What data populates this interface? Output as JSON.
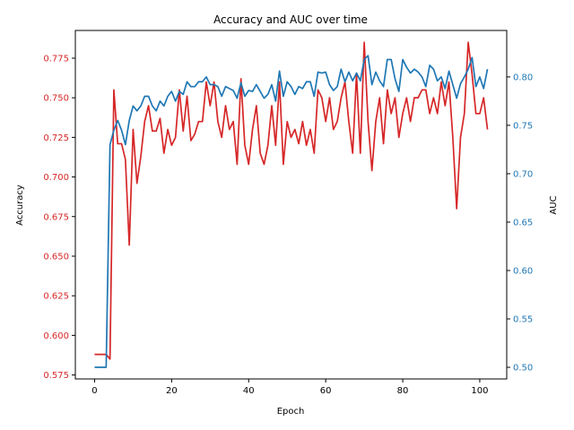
{
  "chart_data": {
    "type": "line",
    "title": "Accuracy and AUC over time",
    "xlabel": "Epoch",
    "xlim": [
      -5,
      107
    ],
    "xticks": [
      0,
      20,
      40,
      60,
      80,
      100
    ],
    "grid": false,
    "left_axis": {
      "label": "Accuracy",
      "color": "#d62728",
      "ylim": [
        0.5725,
        0.7925
      ],
      "ticks": [
        0.575,
        0.6,
        0.625,
        0.65,
        0.675,
        0.7,
        0.725,
        0.75,
        0.775
      ],
      "tick_labels": [
        "0.575",
        "0.600",
        "0.625",
        "0.650",
        "0.675",
        "0.700",
        "0.725",
        "0.750",
        "0.775"
      ]
    },
    "right_axis": {
      "label": "AUC",
      "color": "#1f77b4",
      "ylim": [
        0.488,
        0.848
      ],
      "ticks": [
        0.5,
        0.55,
        0.6,
        0.65,
        0.7,
        0.75,
        0.8
      ],
      "tick_labels": [
        "0.50",
        "0.55",
        "0.60",
        "0.65",
        "0.70",
        "0.75",
        "0.80"
      ]
    },
    "series": [
      {
        "axis": "left",
        "color": "#d62728",
        "x": [
          0,
          1,
          2,
          3,
          4,
          5,
          6,
          7,
          8,
          9,
          10,
          11,
          12,
          13,
          14,
          15,
          16,
          17,
          18,
          19,
          20,
          21,
          22,
          23,
          24,
          25,
          26,
          27,
          28,
          29,
          30,
          31,
          32,
          33,
          34,
          35,
          36,
          37,
          38,
          39,
          40,
          41,
          42,
          43,
          44,
          45,
          46,
          47,
          48,
          49,
          50,
          51,
          52,
          53,
          54,
          55,
          56,
          57,
          58,
          59,
          60,
          61,
          62,
          63,
          64,
          65,
          66,
          67,
          68,
          69,
          70,
          71,
          72,
          73,
          74,
          75,
          76,
          77,
          78,
          79,
          80,
          81,
          82,
          83,
          84,
          85,
          86,
          87,
          88,
          89,
          90,
          91,
          92,
          93,
          94,
          95,
          96,
          97,
          98,
          99,
          100,
          101,
          102
        ],
        "values": [
          0.588,
          0.588,
          0.588,
          0.588,
          0.585,
          0.755,
          0.721,
          0.721,
          0.711,
          0.657,
          0.73,
          0.696,
          0.713,
          0.735,
          0.745,
          0.729,
          0.729,
          0.737,
          0.715,
          0.73,
          0.72,
          0.725,
          0.755,
          0.729,
          0.751,
          0.723,
          0.727,
          0.735,
          0.735,
          0.76,
          0.745,
          0.76,
          0.735,
          0.725,
          0.745,
          0.73,
          0.735,
          0.708,
          0.762,
          0.72,
          0.708,
          0.73,
          0.745,
          0.715,
          0.708,
          0.72,
          0.745,
          0.72,
          0.76,
          0.708,
          0.735,
          0.725,
          0.73,
          0.721,
          0.735,
          0.72,
          0.73,
          0.715,
          0.755,
          0.75,
          0.735,
          0.75,
          0.73,
          0.735,
          0.75,
          0.76,
          0.735,
          0.715,
          0.765,
          0.715,
          0.785,
          0.735,
          0.704,
          0.735,
          0.75,
          0.721,
          0.755,
          0.74,
          0.75,
          0.725,
          0.74,
          0.75,
          0.735,
          0.75,
          0.75,
          0.755,
          0.755,
          0.74,
          0.75,
          0.74,
          0.76,
          0.745,
          0.76,
          0.725,
          0.68,
          0.725,
          0.74,
          0.785,
          0.765,
          0.74,
          0.74,
          0.75,
          0.73
        ]
      },
      {
        "axis": "right",
        "color": "#1f77b4",
        "x": [
          0,
          1,
          2,
          3,
          4,
          5,
          6,
          7,
          8,
          9,
          10,
          11,
          12,
          13,
          14,
          15,
          16,
          17,
          18,
          19,
          20,
          21,
          22,
          23,
          24,
          25,
          26,
          27,
          28,
          29,
          30,
          31,
          32,
          33,
          34,
          35,
          36,
          37,
          38,
          39,
          40,
          41,
          42,
          43,
          44,
          45,
          46,
          47,
          48,
          49,
          50,
          51,
          52,
          53,
          54,
          55,
          56,
          57,
          58,
          59,
          60,
          61,
          62,
          63,
          64,
          65,
          66,
          67,
          68,
          69,
          70,
          71,
          72,
          73,
          74,
          75,
          76,
          77,
          78,
          79,
          80,
          81,
          82,
          83,
          84,
          85,
          86,
          87,
          88,
          89,
          90,
          91,
          92,
          93,
          94,
          95,
          96,
          97,
          98,
          99,
          100,
          101,
          102
        ],
        "values": [
          0.5,
          0.5,
          0.5,
          0.5,
          0.73,
          0.745,
          0.755,
          0.745,
          0.73,
          0.755,
          0.77,
          0.765,
          0.77,
          0.78,
          0.78,
          0.77,
          0.765,
          0.775,
          0.77,
          0.78,
          0.785,
          0.775,
          0.785,
          0.782,
          0.795,
          0.79,
          0.79,
          0.795,
          0.795,
          0.8,
          0.792,
          0.792,
          0.79,
          0.78,
          0.79,
          0.788,
          0.786,
          0.778,
          0.794,
          0.78,
          0.786,
          0.785,
          0.792,
          0.785,
          0.778,
          0.782,
          0.792,
          0.775,
          0.806,
          0.78,
          0.795,
          0.79,
          0.782,
          0.79,
          0.788,
          0.795,
          0.795,
          0.78,
          0.805,
          0.804,
          0.805,
          0.792,
          0.786,
          0.79,
          0.808,
          0.795,
          0.805,
          0.796,
          0.804,
          0.796,
          0.818,
          0.822,
          0.792,
          0.805,
          0.796,
          0.79,
          0.818,
          0.818,
          0.798,
          0.785,
          0.818,
          0.81,
          0.804,
          0.808,
          0.805,
          0.8,
          0.79,
          0.812,
          0.808,
          0.796,
          0.8,
          0.788,
          0.806,
          0.792,
          0.778,
          0.793,
          0.8,
          0.808,
          0.82,
          0.79,
          0.8,
          0.788,
          0.808
        ]
      }
    ]
  }
}
